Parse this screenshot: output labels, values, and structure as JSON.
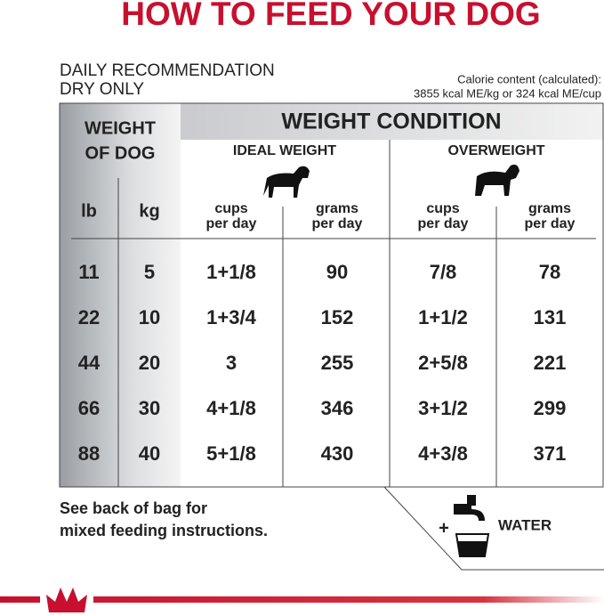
{
  "header": {
    "title": "HOW TO FEED YOUR DOG",
    "subtitle_lines": [
      "DAILY RECOMMENDATION",
      "DRY ONLY"
    ],
    "calorie_lines": [
      "Calorie content (calculated):",
      "3855 kcal ME/kg or 324 kcal ME/cup"
    ]
  },
  "table": {
    "weight_header_lines": [
      "WEIGHT",
      "OF DOG"
    ],
    "condition_header": "WEIGHT CONDITION",
    "groups": [
      "IDEAL WEIGHT",
      "OVERWEIGHT"
    ],
    "columns": [
      [
        "lb"
      ],
      [
        "kg"
      ],
      [
        "cups",
        "per day"
      ],
      [
        "grams",
        "per day"
      ],
      [
        "cups",
        "per day"
      ],
      [
        "grams",
        "per day"
      ]
    ],
    "rows": [
      [
        "11",
        "5",
        "1+1/8",
        "90",
        "7/8",
        "78"
      ],
      [
        "22",
        "10",
        "1+3/4",
        "152",
        "1+1/2",
        "131"
      ],
      [
        "44",
        "20",
        "3",
        "255",
        "2+5/8",
        "221"
      ],
      [
        "66",
        "30",
        "4+1/8",
        "346",
        "3+1/2",
        "299"
      ],
      [
        "88",
        "40",
        "5+1/8",
        "430",
        "4+3/8",
        "371"
      ]
    ]
  },
  "footer": {
    "note_lines": [
      "See back of bag for",
      "mixed feeding instructions."
    ],
    "plus": "+",
    "water": "WATER"
  }
}
